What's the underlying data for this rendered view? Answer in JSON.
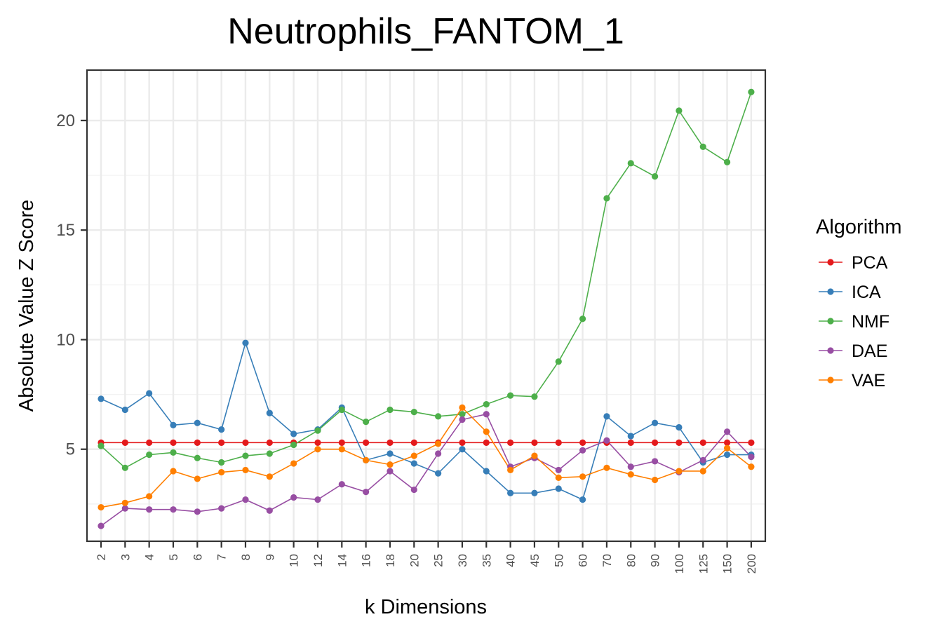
{
  "chart_data": {
    "type": "line",
    "title": "Neutrophils_FANTOM_1",
    "xlabel": "k Dimensions",
    "ylabel": "Absolute Value Z Score",
    "legend_title": "Algorithm",
    "legend_position": "right",
    "grid": true,
    "ylim": [
      0.8,
      22.3
    ],
    "y_ticks": [
      5,
      10,
      15,
      20
    ],
    "y_tick_labels": [
      "5",
      "10",
      "15",
      "20"
    ],
    "x": [
      "2",
      "3",
      "4",
      "5",
      "6",
      "7",
      "8",
      "9",
      "10",
      "12",
      "14",
      "16",
      "18",
      "20",
      "25",
      "30",
      "35",
      "40",
      "45",
      "50",
      "60",
      "70",
      "80",
      "90",
      "100",
      "125",
      "150",
      "200"
    ],
    "series": [
      {
        "name": "PCA",
        "color": "#e41a1c",
        "values": [
          5.3,
          5.3,
          5.3,
          5.3,
          5.3,
          5.3,
          5.3,
          5.3,
          5.3,
          5.3,
          5.3,
          5.3,
          5.3,
          5.3,
          5.3,
          5.3,
          5.3,
          5.3,
          5.3,
          5.3,
          5.3,
          5.3,
          5.3,
          5.3,
          5.3,
          5.3,
          5.3,
          5.3
        ]
      },
      {
        "name": "ICA",
        "color": "#377eb8",
        "values": [
          7.3,
          6.8,
          7.55,
          6.1,
          6.2,
          5.9,
          9.85,
          6.65,
          5.7,
          5.9,
          6.9,
          4.5,
          4.8,
          4.35,
          3.9,
          5.0,
          4.0,
          3.0,
          3.0,
          3.2,
          2.7,
          6.5,
          5.6,
          6.2,
          6.0,
          4.4,
          4.75,
          4.75
        ]
      },
      {
        "name": "NMF",
        "color": "#4daf4a",
        "values": [
          5.15,
          4.15,
          4.75,
          4.85,
          4.6,
          4.4,
          4.7,
          4.8,
          5.2,
          5.85,
          6.8,
          6.25,
          6.8,
          6.7,
          6.5,
          6.6,
          7.05,
          7.45,
          7.4,
          9.0,
          10.95,
          16.45,
          18.05,
          17.45,
          20.45,
          18.8,
          18.1,
          21.3
        ]
      },
      {
        "name": "DAE",
        "color": "#984ea3",
        "values": [
          1.5,
          2.3,
          2.25,
          2.25,
          2.15,
          2.3,
          2.7,
          2.2,
          2.8,
          2.7,
          3.4,
          3.05,
          4.0,
          3.15,
          4.8,
          6.35,
          6.6,
          4.2,
          4.6,
          4.05,
          4.95,
          5.4,
          4.2,
          4.45,
          3.95,
          4.5,
          5.8,
          4.65
        ]
      },
      {
        "name": "VAE",
        "color": "#ff7f00",
        "values": [
          2.35,
          2.55,
          2.85,
          4.0,
          3.65,
          3.95,
          4.05,
          3.75,
          4.35,
          5.0,
          5.0,
          4.5,
          4.3,
          4.7,
          5.25,
          6.9,
          5.8,
          4.05,
          4.7,
          3.7,
          3.75,
          4.15,
          3.85,
          3.6,
          4.0,
          4.0,
          5.05,
          4.2
        ]
      }
    ]
  }
}
